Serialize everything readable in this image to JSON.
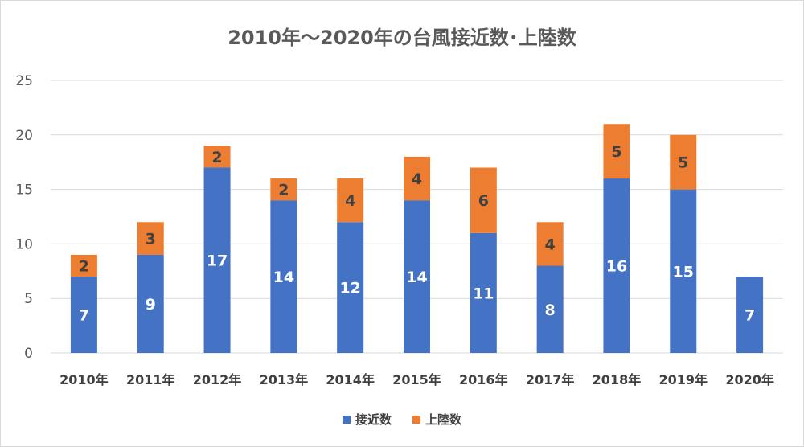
{
  "chart_data": {
    "type": "bar",
    "stacked": true,
    "title": "2010年～2020年の台風接近数･上陸数",
    "categories": [
      "2010年",
      "2011年",
      "2012年",
      "2013年",
      "2014年",
      "2015年",
      "2016年",
      "2017年",
      "2018年",
      "2019年",
      "2020年"
    ],
    "series": [
      {
        "name": "接近数",
        "color": "#4472c4",
        "values": [
          7,
          9,
          17,
          14,
          12,
          14,
          11,
          8,
          16,
          15,
          7
        ]
      },
      {
        "name": "上陸数",
        "color": "#ed7d31",
        "values": [
          2,
          3,
          2,
          2,
          4,
          4,
          6,
          4,
          5,
          5,
          null
        ]
      }
    ],
    "ylim": [
      0,
      25
    ],
    "yticks": [
      0,
      5,
      10,
      15,
      20,
      25
    ],
    "grid": true,
    "legend": "bottom",
    "data_labels": true
  }
}
